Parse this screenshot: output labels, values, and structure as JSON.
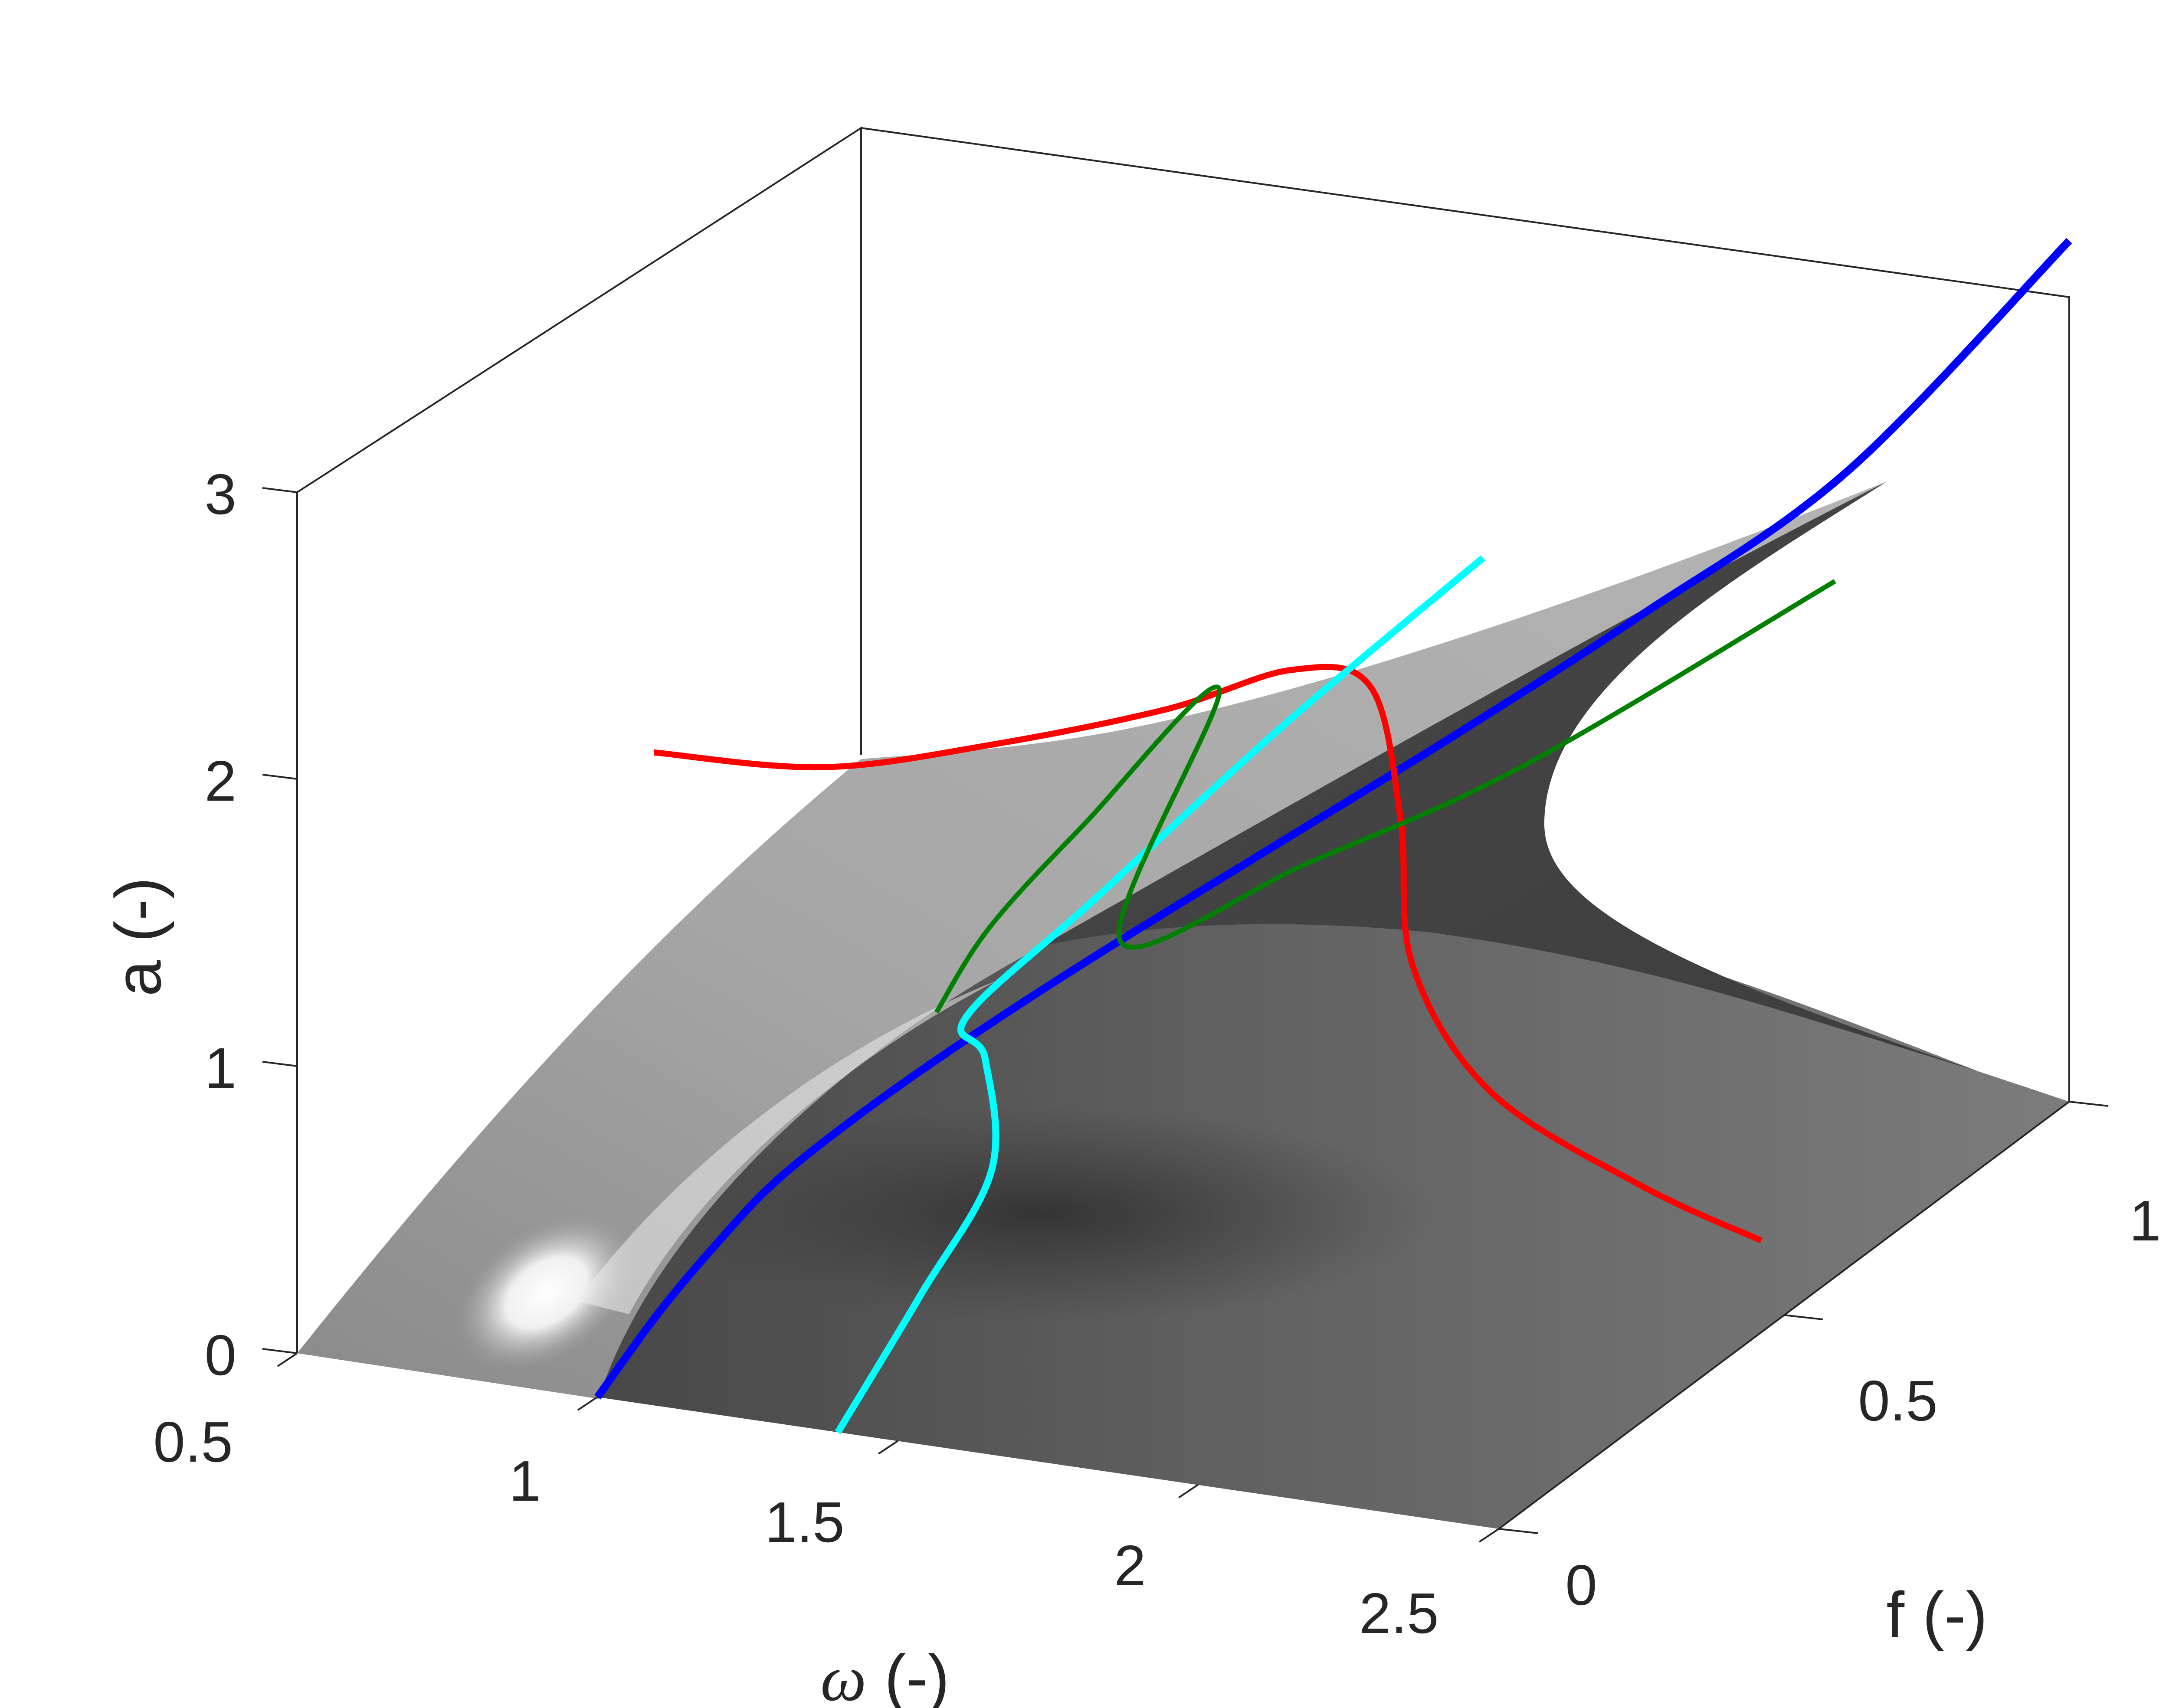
{
  "chart_data": {
    "type": "surface",
    "title": "",
    "axes": {
      "x": {
        "label_prefix": "ω",
        "label_suffix": " (-)",
        "range": [
          0.5,
          2.5
        ],
        "ticks": [
          "0.5",
          "1",
          "1.5",
          "2",
          "2.5"
        ]
      },
      "y": {
        "label": "f (-)",
        "range": [
          0,
          1
        ],
        "ticks": [
          "0",
          "0.5",
          "1"
        ]
      },
      "z": {
        "label": "a (-)",
        "range": [
          0,
          3
        ],
        "ticks": [
          "0",
          "1",
          "2",
          "3"
        ]
      }
    },
    "surface": {
      "colormap": "gray",
      "shading": "interp"
    },
    "grid": false,
    "legend": "none",
    "series": [
      {
        "color": "#0000ff",
        "style": "backbone curve",
        "points": [
          [
            1.0,
            0.0,
            0.0
          ],
          [
            1.1,
            0.0,
            0.32
          ],
          [
            1.2,
            0.0,
            0.6
          ],
          [
            1.3,
            0.0,
            0.85
          ],
          [
            1.4,
            0.05,
            1.05
          ],
          [
            1.5,
            0.12,
            1.22
          ],
          [
            1.62,
            0.22,
            1.4
          ],
          [
            1.78,
            0.35,
            1.62
          ],
          [
            1.95,
            0.5,
            1.85
          ],
          [
            2.12,
            0.65,
            2.1
          ],
          [
            2.3,
            0.82,
            2.4
          ],
          [
            2.5,
            1.0,
            3.0
          ]
        ]
      },
      {
        "color": "#ff0000",
        "style": "frequency response",
        "points": [
          [
            0.6,
            0.52,
            1.35
          ],
          [
            0.9,
            0.5,
            1.42
          ],
          [
            1.2,
            0.48,
            1.62
          ],
          [
            1.5,
            0.47,
            1.85
          ],
          [
            1.72,
            0.46,
            2.07
          ],
          [
            1.85,
            0.46,
            2.05
          ],
          [
            1.9,
            0.46,
            1.6
          ],
          [
            1.92,
            0.46,
            1.1
          ],
          [
            2.05,
            0.46,
            0.7
          ],
          [
            2.3,
            0.46,
            0.45
          ],
          [
            2.5,
            0.46,
            0.32
          ]
        ]
      },
      {
        "color": "#00ffff",
        "style": "frequency response",
        "points": [
          [
            1.4,
            0.0,
            0.0
          ],
          [
            1.5,
            0.04,
            0.45
          ],
          [
            1.58,
            0.08,
            0.85
          ],
          [
            1.55,
            0.1,
            1.2
          ],
          [
            1.5,
            0.12,
            1.3
          ],
          [
            1.62,
            0.22,
            1.6
          ],
          [
            1.8,
            0.36,
            2.05
          ],
          [
            1.98,
            0.52,
            2.45
          ]
        ]
      },
      {
        "color": "#008000",
        "style": "frequency response",
        "points": [
          [
            1.45,
            0.12,
            1.3
          ],
          [
            1.5,
            0.16,
            1.55
          ],
          [
            1.6,
            0.22,
            1.85
          ],
          [
            1.75,
            0.3,
            2.25
          ],
          [
            1.68,
            0.2,
            1.5
          ],
          [
            1.85,
            0.35,
            1.6
          ],
          [
            2.05,
            0.52,
            1.75
          ],
          [
            2.3,
            0.8,
            2.05
          ]
        ]
      }
    ]
  }
}
